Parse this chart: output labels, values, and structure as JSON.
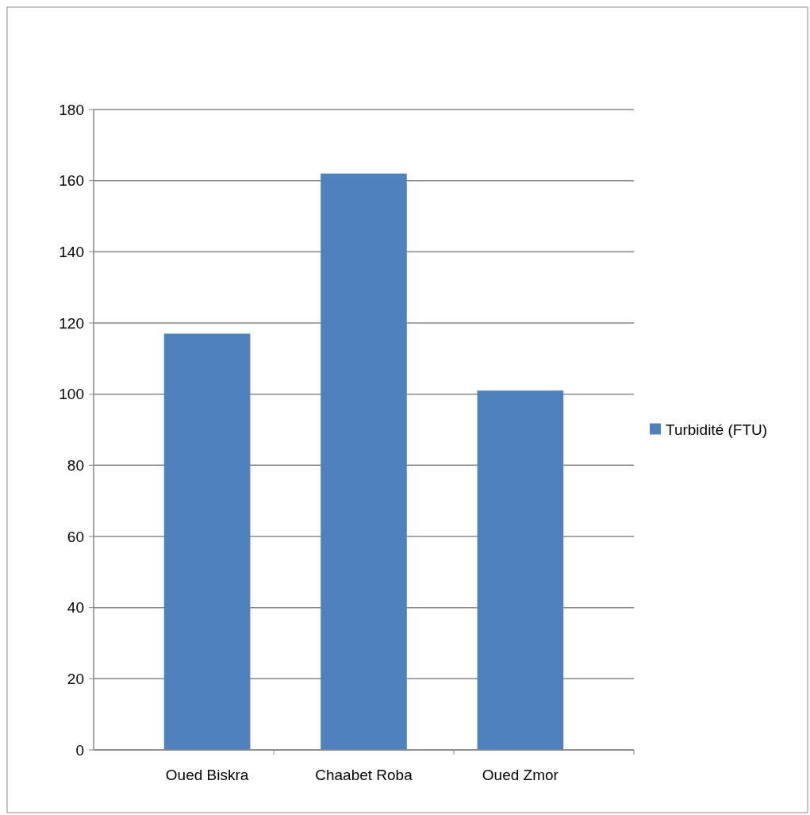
{
  "chart_data": {
    "type": "bar",
    "categories": [
      "Oued Biskra",
      "Chaabet Roba",
      "Oued Zmor"
    ],
    "series": [
      {
        "name": "Turbidité (FTU)",
        "color": "#4f81bd",
        "values": [
          117,
          162,
          101
        ]
      }
    ],
    "ylim": [
      0,
      180
    ],
    "yticks": [
      0,
      20,
      40,
      60,
      80,
      100,
      120,
      140,
      160,
      180
    ],
    "grid": "y",
    "legend": "right"
  }
}
